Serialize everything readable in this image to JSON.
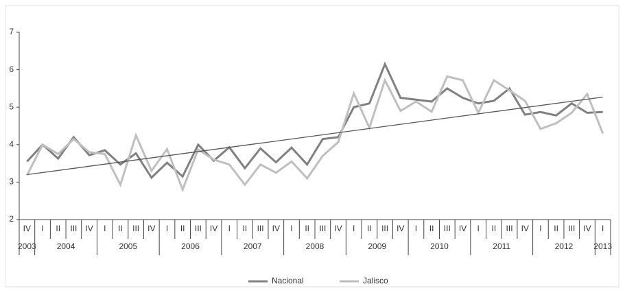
{
  "chart_data": {
    "type": "line",
    "categories": [
      "IV",
      "I",
      "II",
      "III",
      "IV",
      "I",
      "II",
      "III",
      "IV",
      "I",
      "II",
      "III",
      "IV",
      "I",
      "II",
      "III",
      "IV",
      "I",
      "II",
      "III",
      "IV",
      "I",
      "II",
      "III",
      "IV",
      "I",
      "II",
      "III",
      "IV",
      "I",
      "II",
      "III",
      "IV",
      "I",
      "II",
      "III",
      "IV",
      "I"
    ],
    "years": [
      {
        "label": "2003",
        "span": 1
      },
      {
        "label": "2004",
        "span": 4
      },
      {
        "label": "2005",
        "span": 4
      },
      {
        "label": "2006",
        "span": 4
      },
      {
        "label": "2007",
        "span": 4
      },
      {
        "label": "2008",
        "span": 4
      },
      {
        "label": "2009",
        "span": 4
      },
      {
        "label": "2010",
        "span": 4
      },
      {
        "label": "2011",
        "span": 4
      },
      {
        "label": "2012",
        "span": 4
      },
      {
        "label": "2013",
        "span": 1
      }
    ],
    "series": [
      {
        "name": "Nacional",
        "color": "#808080",
        "values": [
          3.55,
          4.0,
          3.63,
          4.2,
          3.72,
          3.85,
          3.47,
          3.77,
          3.12,
          3.52,
          3.15,
          4.0,
          3.57,
          3.93,
          3.37,
          3.9,
          3.53,
          3.92,
          3.47,
          4.15,
          4.2,
          5.0,
          5.1,
          6.15,
          5.25,
          5.2,
          5.15,
          5.5,
          5.25,
          5.1,
          5.17,
          5.5,
          4.8,
          4.87,
          4.78,
          5.1,
          4.85,
          4.87
        ]
      },
      {
        "name": "Jalisco",
        "color": "#bfbfbf",
        "values": [
          3.18,
          4.0,
          3.75,
          4.15,
          3.8,
          3.75,
          2.93,
          4.25,
          3.3,
          3.88,
          2.8,
          3.87,
          3.6,
          3.47,
          2.93,
          3.47,
          3.25,
          3.55,
          3.1,
          3.7,
          4.07,
          5.37,
          4.45,
          5.72,
          4.9,
          5.15,
          4.88,
          5.82,
          5.72,
          4.85,
          5.72,
          5.45,
          5.17,
          4.42,
          4.57,
          4.85,
          5.35,
          4.3
        ]
      }
    ],
    "trendline": {
      "color": "#555555",
      "values": [
        3.2,
        5.27
      ]
    },
    "ylim": [
      2,
      7
    ],
    "yticks": [
      2,
      3,
      4,
      5,
      6,
      7
    ]
  }
}
